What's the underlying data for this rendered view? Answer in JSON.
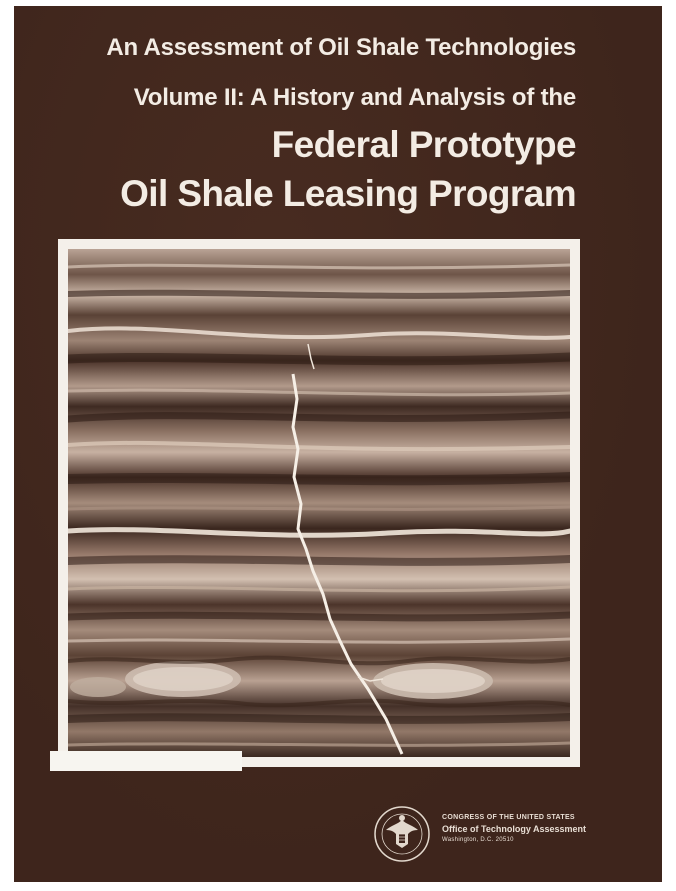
{
  "cover": {
    "title_line1": "An Assessment of Oil Shale Technologies",
    "title_line2": "Volume II: A History and Analysis of the",
    "title_line3": "Federal Prototype",
    "title_line4": "Oil Shale Leasing Program",
    "background_color": "#3e251c",
    "text_color": "#f3ece4"
  },
  "publisher": {
    "line1": "CONGRESS OF THE UNITED STATES",
    "line2": "Office of Technology Assessment",
    "line3": "Washington, D.C. 20510"
  },
  "icons": {
    "seal": "great-seal-icon"
  }
}
